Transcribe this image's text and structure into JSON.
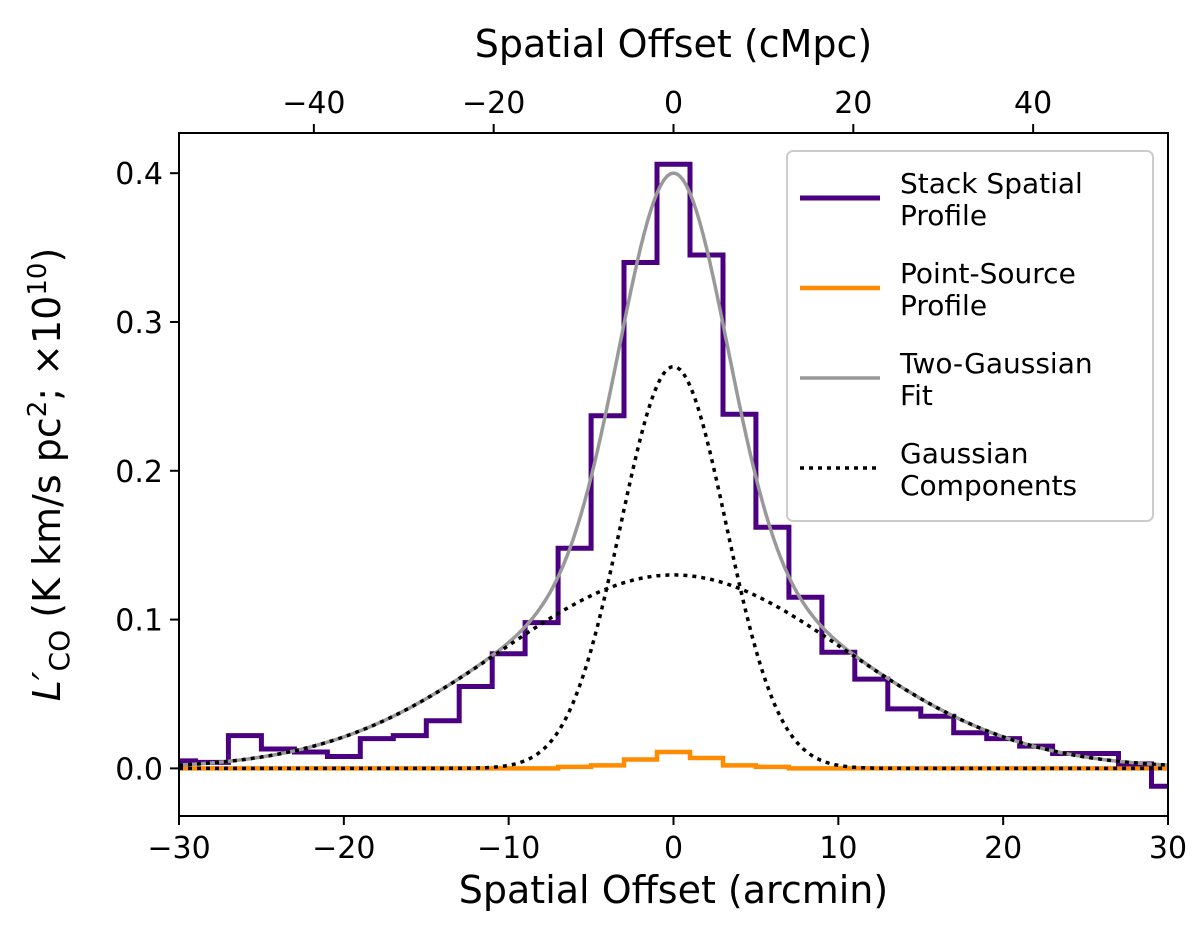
{
  "chart_data": {
    "type": "line",
    "xlabel": "Spatial Offset (arcmin)",
    "x2label": "Spatial Offset (cMpc)",
    "ylabel_main": "L′",
    "ylabel_sub": "CO",
    "ylabel_rest": " (K km/s pc",
    "ylabel_sup1": "2",
    "ylabel_rest2": "; ×10",
    "ylabel_sup2": "10",
    "ylabel_end": ")",
    "xlim": [
      -30,
      30
    ],
    "ylim": [
      -0.032,
      0.427
    ],
    "x2lim": [
      -55,
      55
    ],
    "xticks": [
      -30,
      -20,
      -10,
      0,
      10,
      20,
      30
    ],
    "xtick_labels": [
      "−30",
      "−20",
      "−10",
      "0",
      "10",
      "20",
      "30"
    ],
    "x2ticks": [
      -40,
      -20,
      0,
      20,
      40
    ],
    "x2tick_labels": [
      "−40",
      "−20",
      "0",
      "20",
      "40"
    ],
    "yticks": [
      0.0,
      0.1,
      0.2,
      0.3,
      0.4
    ],
    "ytick_labels": [
      "0.0",
      "0.1",
      "0.2",
      "0.3",
      "0.4"
    ],
    "grid": false,
    "legend_position": "top-right",
    "colors": {
      "stack": "#4b0082",
      "point_source": "#ff8c00",
      "fit": "#999999",
      "components": "#000000"
    },
    "legend": [
      {
        "line1": "Stack Spatial",
        "line2": "Profile",
        "style": "stack"
      },
      {
        "line1": "Point-Source",
        "line2": "Profile",
        "style": "point_source"
      },
      {
        "line1": "Two-Gaussian",
        "line2": "Fit",
        "style": "fit"
      },
      {
        "line1": "Gaussian",
        "line2": "Components",
        "style": "components"
      }
    ],
    "stack_profile": {
      "bin_edges": [
        -31,
        -29,
        -27,
        -25,
        -23,
        -21,
        -19,
        -17,
        -15,
        -13,
        -11,
        -9,
        -7,
        -5,
        -3,
        -1,
        1,
        3,
        5,
        7,
        9,
        11,
        13,
        15,
        17,
        19,
        21,
        23,
        25,
        27,
        29,
        31
      ],
      "values": [
        0.005,
        0.004,
        0.022,
        0.013,
        0.011,
        0.008,
        0.02,
        0.022,
        0.032,
        0.055,
        0.077,
        0.098,
        0.148,
        0.237,
        0.34,
        0.406,
        0.345,
        0.238,
        0.162,
        0.115,
        0.078,
        0.06,
        0.04,
        0.035,
        0.024,
        0.02,
        0.015,
        0.01,
        0.01,
        0.003,
        -0.012
      ]
    },
    "point_source_profile": {
      "bin_edges": [
        -31,
        -29,
        -27,
        -25,
        -23,
        -21,
        -19,
        -17,
        -15,
        -13,
        -11,
        -9,
        -7,
        -5,
        -3,
        -1,
        1,
        3,
        5,
        7,
        9,
        11,
        13,
        15,
        17,
        19,
        21,
        23,
        25,
        27,
        29,
        31
      ],
      "values": [
        0,
        0,
        0,
        0,
        0,
        0,
        0,
        0,
        0,
        0,
        0,
        0,
        0.001,
        0.002,
        0.006,
        0.011,
        0.007,
        0.002,
        0.001,
        0,
        0,
        0,
        0,
        0,
        0,
        0,
        0,
        0,
        0,
        0,
        0
      ]
    },
    "gaussian_components": [
      {
        "amplitude": 0.27,
        "center": 0,
        "sigma": 3.2
      },
      {
        "amplitude": 0.13,
        "center": 0,
        "sigma": 10.5
      }
    ]
  }
}
